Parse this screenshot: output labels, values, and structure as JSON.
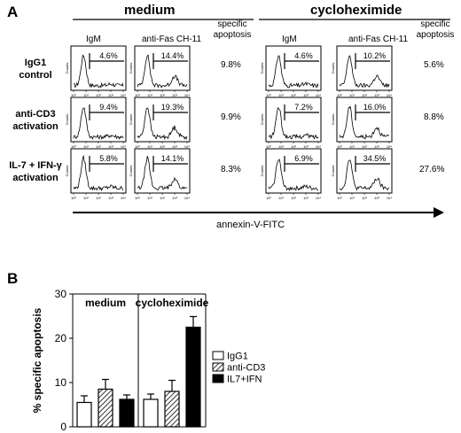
{
  "panel_a": {
    "letter": "A",
    "conditions": [
      "medium",
      "cycloheximide"
    ],
    "column_headers": [
      "IgM",
      "anti-Fas CH-11"
    ],
    "specific_header": "specific apoptosis",
    "rows": [
      {
        "label": "IgG1 control"
      },
      {
        "label": "anti-CD3 activation"
      },
      {
        "label": "IL-7 + IFN-γ activation"
      }
    ],
    "specific_apoptosis": [
      [
        "9.8%",
        "5.6%"
      ],
      [
        "9.9%",
        "8.8%"
      ],
      [
        "8.3%",
        "27.6%"
      ]
    ],
    "histograms": [
      [
        {
          "igm": "4.6%",
          "fas": "14.4%"
        },
        {
          "igm": "4.6%",
          "fas": "10.2%"
        }
      ],
      [
        {
          "igm": "9.4%",
          "fas": "19.3%"
        },
        {
          "igm": "7.2%",
          "fas": "16.0%"
        }
      ],
      [
        {
          "igm": "5.8%",
          "fas": "14.1%"
        },
        {
          "igm": "6.9%",
          "fas": "34.5%"
        }
      ]
    ],
    "y_axis_label": "Counts",
    "x_tick_labels": [
      "10⁰",
      "10¹",
      "10²",
      "10³",
      "10⁴"
    ],
    "arrow_label": "annexin-V-FITC"
  },
  "chart_data": {
    "type": "bar",
    "letter": "B",
    "groups": [
      "medium",
      "cycloheximide"
    ],
    "categories": [
      "medium",
      "cycloheximide"
    ],
    "series": [
      {
        "name": "IgG1",
        "values": [
          5.5,
          6.2
        ],
        "errors": [
          1.5,
          1.2
        ],
        "fill": "white"
      },
      {
        "name": "anti-CD3",
        "values": [
          8.5,
          8.0
        ],
        "errors": [
          2.2,
          2.5
        ],
        "fill": "hatched"
      },
      {
        "name": "IL7+IFN",
        "values": [
          6.2,
          22.5
        ],
        "errors": [
          1.0,
          2.4
        ],
        "fill": "black"
      }
    ],
    "ylabel": "% specific apoptosis",
    "ylim": [
      0,
      30
    ],
    "yticks": [
      0,
      10,
      20,
      30
    ],
    "legend_position": "right"
  }
}
